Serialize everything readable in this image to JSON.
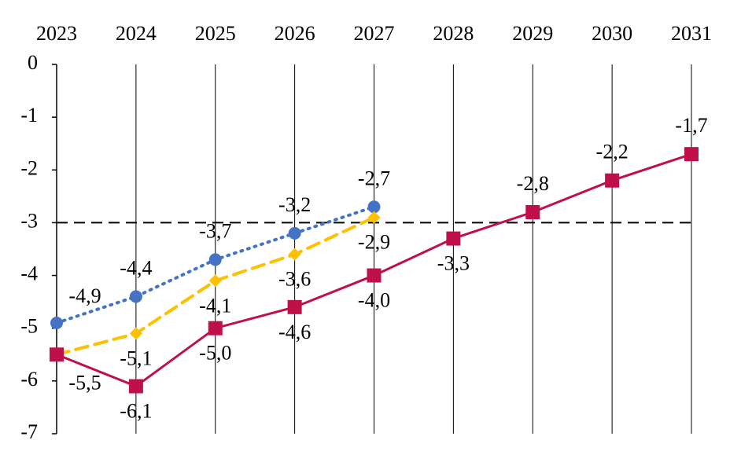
{
  "chart_data": {
    "type": "line",
    "categories": [
      "2023",
      "2024",
      "2025",
      "2026",
      "2027",
      "2028",
      "2029",
      "2030",
      "2031"
    ],
    "ylim": [
      -7,
      0
    ],
    "yticks": [
      0,
      -1,
      -2,
      -3,
      -4,
      -5,
      -6,
      -7
    ],
    "grid": true,
    "reference_line": -3,
    "series": [
      {
        "color": "#4472c4",
        "marker": "circle",
        "line_style": "dotted",
        "values": [
          -4.9,
          -4.4,
          -3.7,
          -3.2,
          -2.7,
          null,
          null,
          null,
          null
        ],
        "value_labels": [
          "-4,9",
          "-4,4",
          "-3,7",
          "-3,2",
          "-2,7",
          null,
          null,
          null,
          null
        ]
      },
      {
        "color": "#ffc000",
        "marker": "diamond",
        "line_style": "dashed",
        "values": [
          -5.5,
          -5.1,
          -4.1,
          -3.6,
          -2.9,
          null,
          null,
          null,
          null
        ],
        "value_labels": [
          null,
          "-5,1",
          "-4,1",
          "-3,6",
          "-2,9",
          null,
          null,
          null,
          null
        ]
      },
      {
        "color": "#c0104a",
        "marker": "square",
        "line_style": "solid",
        "values": [
          -5.5,
          -6.1,
          -5.0,
          -4.6,
          -4.0,
          -3.3,
          -2.8,
          -2.2,
          -1.7
        ],
        "value_labels": [
          "-5,5",
          "-6,1",
          "-5,0",
          "-4,6",
          "-4,0",
          "-3,3",
          "-2,8",
          "-2,2",
          "-1,7"
        ]
      }
    ]
  }
}
